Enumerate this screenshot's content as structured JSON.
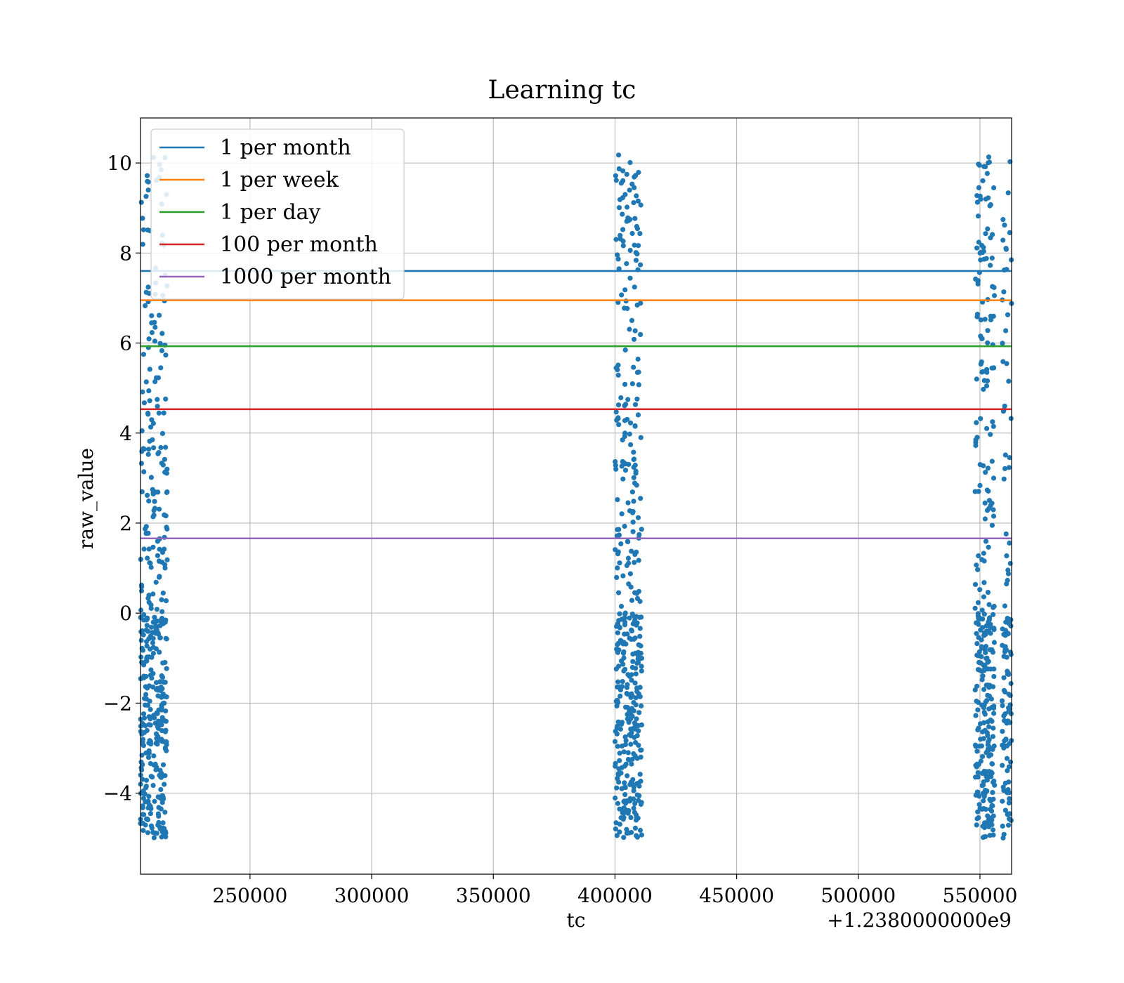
{
  "chart_data": {
    "type": "scatter",
    "title": "Learning tc",
    "xlabel": "tc",
    "ylabel": "raw_value",
    "x_offset_label": "+1.2380000000e9",
    "xlim": [
      205000,
      563000
    ],
    "ylim": [
      -5.8,
      11.0
    ],
    "xticks": [
      250000,
      300000,
      350000,
      400000,
      450000,
      500000,
      550000
    ],
    "xtick_labels": [
      "250000",
      "300000",
      "350000",
      "400000",
      "450000",
      "500000",
      "550000"
    ],
    "yticks": [
      -4,
      -2,
      0,
      2,
      4,
      6,
      8,
      10
    ],
    "ytick_labels": [
      "−4",
      "−2",
      "0",
      "2",
      "4",
      "6",
      "8",
      "10"
    ],
    "grid": true,
    "legend_position": "top-left",
    "point_color": "#1f77b4",
    "hlines": [
      {
        "name": "1 per month",
        "y": 7.6,
        "color": "#1f77b4"
      },
      {
        "name": "1 per week",
        "y": 6.95,
        "color": "#ff7f0e"
      },
      {
        "name": "1 per day",
        "y": 5.93,
        "color": "#2ca02c"
      },
      {
        "name": "100 per month",
        "y": 4.53,
        "color": "#d62728"
      },
      {
        "name": "1000 per month",
        "y": 1.66,
        "color": "#9467bd"
      }
    ],
    "point_clusters": [
      {
        "x_min": 205000,
        "x_max": 216000,
        "count": 420
      },
      {
        "x_min": 400000,
        "x_max": 411000,
        "count": 420
      },
      {
        "x_min": 548000,
        "x_max": 556000,
        "count": 330
      },
      {
        "x_min": 559000,
        "x_max": 563000,
        "count": 120
      }
    ]
  }
}
